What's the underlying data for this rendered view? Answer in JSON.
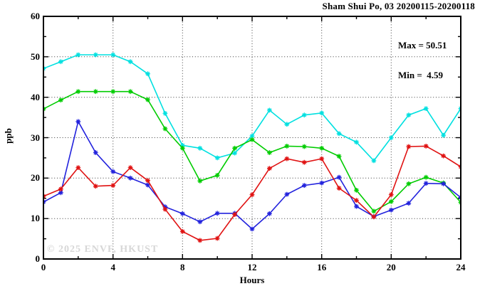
{
  "title": "Sham Shui Po, 03 20200115-20200118",
  "legend": {
    "max_label": "Max = 50.51",
    "min_label": "Min =  4.59"
  },
  "watermark": "© 2025 ENVF, HKUST",
  "chart_data": {
    "type": "line",
    "title": "Sham Shui Po, 03 20200115-20200118",
    "xlabel": "Hours",
    "ylabel": "ppb",
    "xlim": [
      0,
      24
    ],
    "ylim": [
      0,
      60
    ],
    "x_major_ticks": [
      0,
      4,
      8,
      12,
      16,
      20,
      24
    ],
    "x_minor_step": 2,
    "y_major_ticks": [
      0,
      10,
      20,
      30,
      40,
      50,
      60
    ],
    "y_minor_step": 5,
    "grid": true,
    "marker": "star",
    "legend_position": "top-right-inside",
    "stats": {
      "max": 50.51,
      "min": 4.59
    },
    "x": [
      0,
      1,
      2,
      3,
      4,
      5,
      6,
      7,
      8,
      9,
      10,
      11,
      12,
      13,
      14,
      15,
      16,
      17,
      18,
      19,
      20,
      21,
      22,
      23,
      24
    ],
    "series": [
      {
        "name": "series-cyan",
        "color": "#00e0e0",
        "values": [
          47.1,
          48.8,
          50.5,
          50.5,
          50.5,
          48.8,
          45.8,
          36.0,
          28.1,
          27.4,
          25.0,
          26.2,
          30.4,
          36.8,
          33.3,
          35.6,
          36.1,
          31.0,
          28.9,
          24.3,
          30.0,
          35.6,
          37.2,
          30.6,
          37.2
        ]
      },
      {
        "name": "series-green",
        "color": "#00cc00",
        "values": [
          37.1,
          39.3,
          41.4,
          41.4,
          41.4,
          41.4,
          39.4,
          32.2,
          27.4,
          19.3,
          20.7,
          27.4,
          29.5,
          26.3,
          27.9,
          27.8,
          27.4,
          25.4,
          17.0,
          11.8,
          14.2,
          18.6,
          20.2,
          18.8,
          14.0
        ]
      },
      {
        "name": "series-blue",
        "color": "#2222dd",
        "values": [
          14.1,
          16.4,
          34.0,
          26.3,
          21.6,
          20.0,
          18.3,
          12.9,
          11.2,
          9.2,
          11.3,
          11.3,
          7.4,
          11.2,
          16.0,
          18.2,
          18.8,
          20.2,
          13.0,
          10.5,
          12.1,
          13.8,
          18.7,
          18.6,
          15.2
        ]
      },
      {
        "name": "series-red",
        "color": "#e01212",
        "values": [
          15.5,
          17.3,
          22.6,
          18.0,
          18.2,
          22.6,
          19.4,
          12.3,
          6.8,
          4.6,
          5.1,
          11.0,
          15.9,
          22.4,
          24.8,
          23.9,
          24.8,
          17.5,
          14.5,
          10.4,
          15.9,
          27.8,
          27.9,
          25.5,
          22.8
        ]
      }
    ]
  }
}
